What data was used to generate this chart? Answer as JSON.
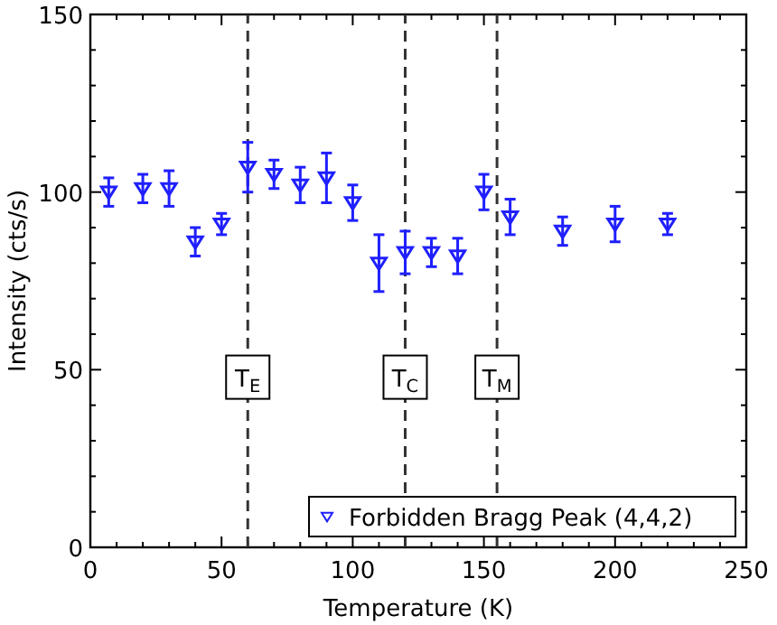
{
  "chart_data": {
    "type": "scatter",
    "xlabel": "Temperature (K)",
    "ylabel": "Intensity (cts/s)",
    "xlim": [
      0,
      250
    ],
    "ylim": [
      0,
      150
    ],
    "xticks": [
      0,
      {
        "value": 10,
        "label": null
      },
      {
        "value": 20,
        "label": null
      },
      {
        "value": 30,
        "label": null
      },
      {
        "value": 40,
        "label": null
      },
      50,
      {
        "value": 60,
        "label": null
      },
      {
        "value": 70,
        "label": null
      },
      {
        "value": 80,
        "label": null
      },
      {
        "value": 90,
        "label": null
      },
      100,
      {
        "value": 110,
        "label": null
      },
      {
        "value": 120,
        "label": null
      },
      {
        "value": 130,
        "label": null
      },
      {
        "value": 140,
        "label": null
      },
      150,
      {
        "value": 160,
        "label": null
      },
      {
        "value": 170,
        "label": null
      },
      {
        "value": 180,
        "label": null
      },
      {
        "value": 190,
        "label": null
      },
      200,
      {
        "value": 210,
        "label": null
      },
      {
        "value": 220,
        "label": null
      },
      {
        "value": 230,
        "label": null
      },
      {
        "value": 240,
        "label": null
      },
      250
    ],
    "yticks": [
      0,
      {
        "value": 10,
        "label": null
      },
      {
        "value": 20,
        "label": null
      },
      {
        "value": 30,
        "label": null
      },
      {
        "value": 40,
        "label": null
      },
      50,
      {
        "value": 60,
        "label": null
      },
      {
        "value": 70,
        "label": null
      },
      {
        "value": 80,
        "label": null
      },
      {
        "value": 90,
        "label": null
      },
      100,
      {
        "value": 110,
        "label": null
      },
      {
        "value": 120,
        "label": null
      },
      {
        "value": 130,
        "label": null
      },
      {
        "value": 140,
        "label": null
      },
      150
    ],
    "marker": "triangle",
    "legend": "bottom right",
    "series": [
      {
        "name": "Forbidden Bragg Peak (4,4,2)",
        "color": "#1f1fff",
        "x": [
          7,
          20,
          30,
          40,
          50,
          60,
          70,
          80,
          90,
          100,
          110,
          120,
          130,
          140,
          150,
          160,
          180,
          200,
          220
        ],
        "values": [
          100,
          101,
          101,
          86,
          91,
          107,
          105,
          102,
          104,
          97,
          80,
          83,
          83,
          82,
          100,
          93,
          89,
          91,
          91
        ],
        "errors": [
          4,
          4,
          5,
          4,
          3,
          7,
          4,
          5,
          7,
          5,
          8,
          6,
          4,
          5,
          5,
          5,
          4,
          5,
          3
        ]
      }
    ],
    "ref_lines": [
      {
        "axis": "x",
        "value": 60,
        "label": "T$_{E}$",
        "color": "#333333",
        "line_style": "dashed"
      },
      {
        "axis": "x",
        "value": 120,
        "label": "T$_{C}$",
        "color": "#333333",
        "line_style": "dashed"
      },
      {
        "axis": "x",
        "value": 155,
        "label": "T$_{M}$",
        "color": "#333333",
        "line_style": "dashed"
      }
    ]
  }
}
